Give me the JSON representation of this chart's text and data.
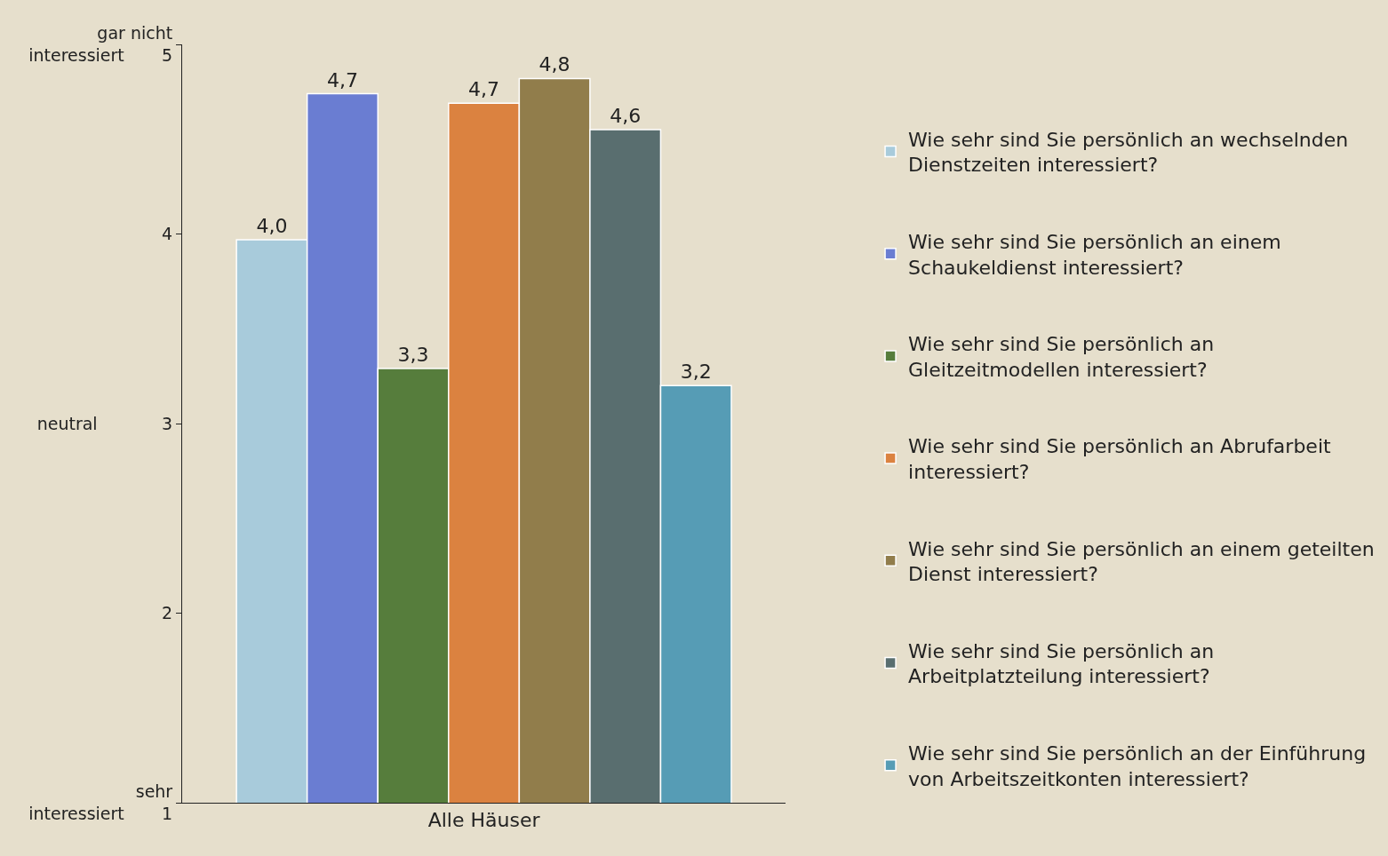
{
  "chart_data": {
    "type": "bar",
    "categories": [
      "Alle Häuser"
    ],
    "series": [
      {
        "name": "Wie sehr sind Sie persönlich an wechselnden Dienstzeiten interessiert?",
        "color": "#a8cbdb",
        "values": [
          3.97
        ],
        "value_labels": [
          "4,0"
        ]
      },
      {
        "name": "Wie sehr sind Sie persönlich an einem Schaukeldienst interessiert?",
        "color": "#6a7dd2",
        "values": [
          4.74
        ],
        "value_labels": [
          "4,7"
        ]
      },
      {
        "name": "Wie sehr sind Sie persönlich an Gleitzeitmodellen interessiert?",
        "color": "#567d3c",
        "values": [
          3.29
        ],
        "value_labels": [
          "3,3"
        ]
      },
      {
        "name": "Wie sehr sind Sie persönlich an Abrufarbeit interessiert?",
        "color": "#db8240",
        "values": [
          4.69
        ],
        "value_labels": [
          "4,7"
        ]
      },
      {
        "name": "Wie sehr sind Sie persönlich an einem geteilten Dienst interessiert?",
        "color": "#917d4b",
        "values": [
          4.82
        ],
        "value_labels": [
          "4,8"
        ]
      },
      {
        "name": "Wie sehr sind Sie persönlich an Arbeitplatzteilung interessiert?",
        "color": "#596e6f",
        "values": [
          4.55
        ],
        "value_labels": [
          "4,6"
        ]
      },
      {
        "name": "Wie sehr sind Sie persönlich an der Einführung von Arbeitszeitkonten interessiert?",
        "color": "#569cb5",
        "values": [
          3.2
        ],
        "value_labels": [
          "3,2"
        ]
      }
    ],
    "ylim": [
      1,
      5
    ],
    "yticks": [
      {
        "value": 1,
        "label": "sehr interessiert 1"
      },
      2,
      {
        "value": 3,
        "label": "neutral 3"
      },
      4,
      {
        "value": 5,
        "label": "gar nicht interessiert 5"
      }
    ],
    "grid": false,
    "legend": "right"
  }
}
